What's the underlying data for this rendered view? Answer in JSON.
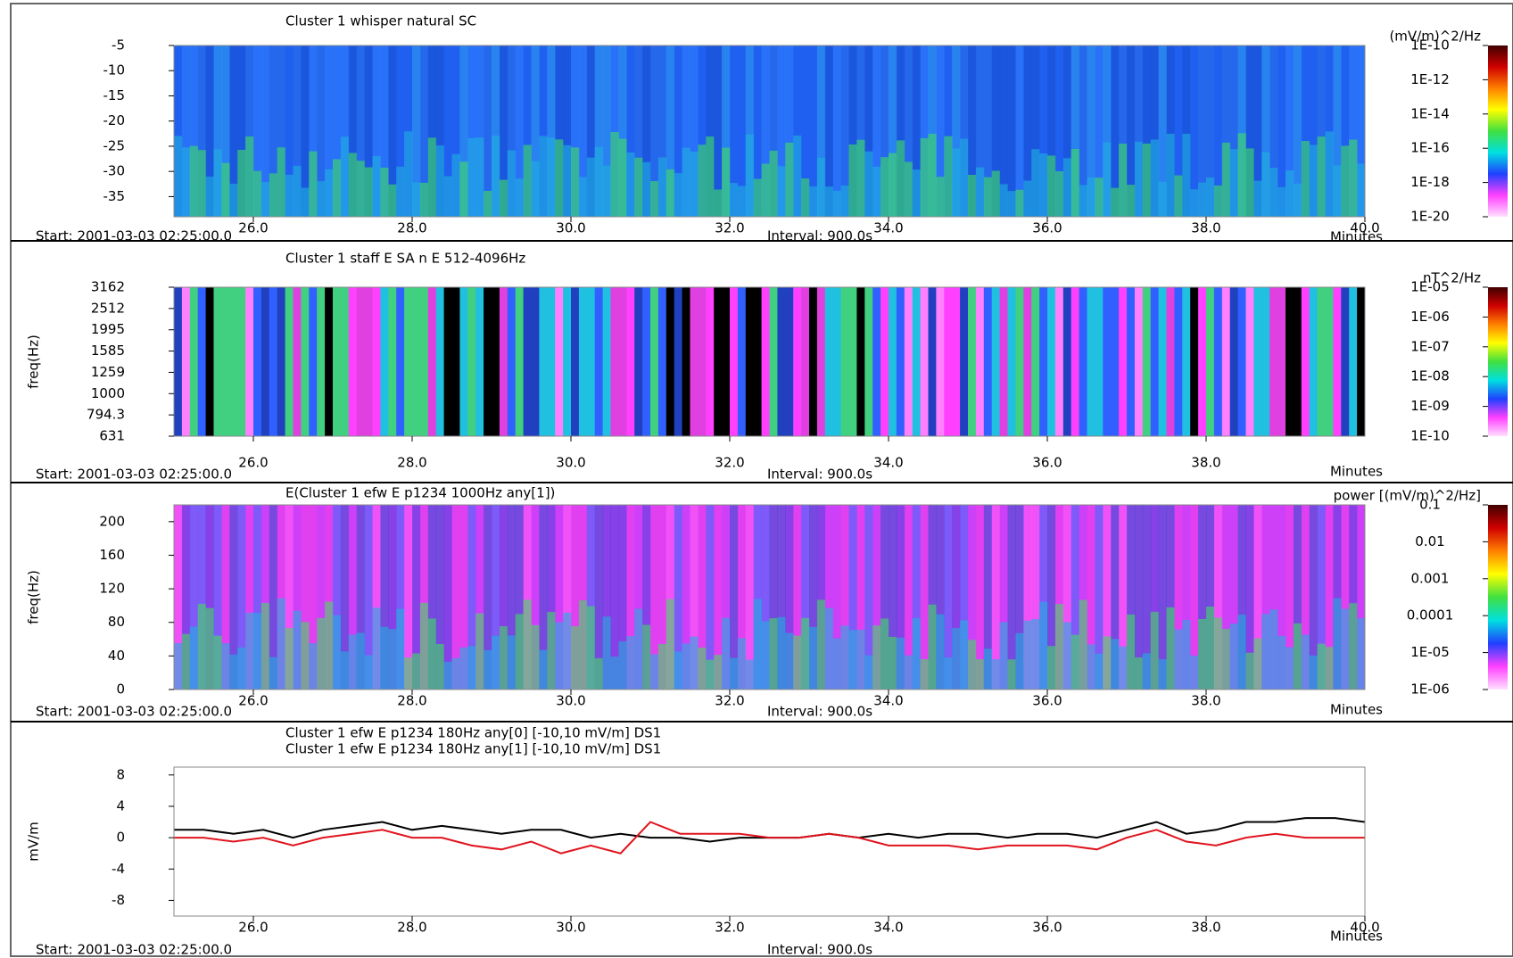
{
  "chart_data": [
    {
      "type": "spectrogram",
      "title": "Cluster 1 whisper natural SC",
      "xlim": [
        25,
        40
      ],
      "xticks": [
        {
          "value": 26,
          "label": "26.0"
        },
        {
          "value": 28,
          "label": "28.0"
        },
        {
          "value": 30,
          "label": "30.0"
        },
        {
          "value": 32,
          "label": "32.0"
        },
        {
          "value": 34,
          "label": "34.0"
        },
        {
          "value": 36,
          "label": "36.0"
        },
        {
          "value": 38,
          "label": "38.0"
        },
        {
          "value": 40,
          "label": "40.0"
        }
      ],
      "xlabel": "Minutes",
      "start_label": "Start: 2001-03-03 02:25:00.0",
      "interval_label": "Interval: 900.0s",
      "ylim": [
        -39,
        -5
      ],
      "yticks": [
        -5,
        -10,
        -15,
        -20,
        -25,
        -30,
        -35
      ],
      "colorbar_label": "(mV/m)^2/Hz",
      "clim": [
        1e-20,
        1e-10
      ],
      "clog": true,
      "cticks": [
        {
          "value": 1e-10,
          "label": "1E-10"
        },
        {
          "value": 1e-12,
          "label": "1E-12"
        },
        {
          "value": 1e-14,
          "label": "1E-14"
        },
        {
          "value": 1e-16,
          "label": "1E-16"
        },
        {
          "value": 1e-18,
          "label": "1E-18"
        },
        {
          "value": 1e-20,
          "label": "1E-20"
        }
      ]
    },
    {
      "type": "spectrogram",
      "title": "Cluster 1 staff E SA n E 512-4096Hz",
      "ylabel": "freq(Hz)",
      "xlim": [
        25,
        40
      ],
      "xticks": [
        {
          "value": 26,
          "label": "26.0"
        },
        {
          "value": 28,
          "label": "28.0"
        },
        {
          "value": 30,
          "label": "30.0"
        },
        {
          "value": 32,
          "label": "32.0"
        },
        {
          "value": 34,
          "label": "34.0"
        },
        {
          "value": 36,
          "label": "36.0"
        },
        {
          "value": 38,
          "label": "38.0"
        }
      ],
      "xlabel": "Minutes",
      "start_label": "Start: 2001-03-03 02:25:00.0",
      "interval_label": "Interval: 900.0s",
      "ylog": true,
      "ylim": [
        631,
        3162
      ],
      "yticks": [
        3162,
        2512,
        1995,
        1585,
        1259,
        1000,
        794.3,
        631
      ],
      "colorbar_label": "nT^2/Hz",
      "clim": [
        1e-10,
        1e-05
      ],
      "clog": true,
      "cticks": [
        {
          "value": 1e-05,
          "label": "1E-05"
        },
        {
          "value": 1e-06,
          "label": "1E-06"
        },
        {
          "value": 1e-07,
          "label": "1E-07"
        },
        {
          "value": 1e-08,
          "label": "1E-08"
        },
        {
          "value": 1e-09,
          "label": "1E-09"
        },
        {
          "value": 1e-10,
          "label": "1E-10"
        }
      ]
    },
    {
      "type": "spectrogram",
      "title": "E(Cluster 1 efw E p1234 1000Hz any[1])",
      "ylabel": "freq(Hz)",
      "xlim": [
        25,
        40
      ],
      "xticks": [
        {
          "value": 26,
          "label": "26.0"
        },
        {
          "value": 28,
          "label": "28.0"
        },
        {
          "value": 30,
          "label": "30.0"
        },
        {
          "value": 32,
          "label": "32.0"
        },
        {
          "value": 34,
          "label": "34.0"
        },
        {
          "value": 36,
          "label": "36.0"
        },
        {
          "value": 38,
          "label": "38.0"
        }
      ],
      "xlabel": "Minutes",
      "start_label": "Start: 2001-03-03 02:25:00.0",
      "interval_label": "Interval: 900.0s",
      "ylim": [
        0,
        220
      ],
      "yticks": [
        200,
        160,
        120,
        80,
        40,
        0
      ],
      "colorbar_label": "power [(mV/m)^2/Hz]",
      "clim": [
        1e-06,
        0.1
      ],
      "clog": true,
      "cticks": [
        0.1,
        0.01,
        0.001,
        0.0001,
        {
          "value": 1e-05,
          "label": "1E-05"
        },
        {
          "value": 1e-06,
          "label": "1E-06"
        }
      ]
    },
    {
      "type": "line",
      "ylabel": "mV/m",
      "xlim": [
        25,
        40
      ],
      "xticks": [
        {
          "value": 26,
          "label": "26.0"
        },
        {
          "value": 28,
          "label": "28.0"
        },
        {
          "value": 30,
          "label": "30.0"
        },
        {
          "value": 32,
          "label": "32.0"
        },
        {
          "value": 34,
          "label": "34.0"
        },
        {
          "value": 36,
          "label": "36.0"
        },
        {
          "value": 38,
          "label": "38.0"
        },
        {
          "value": 40,
          "label": "40.0"
        }
      ],
      "xlabel": "Minutes",
      "start_label": "Start: 2001-03-03 02:25:00.0",
      "interval_label": "Interval: 900.0s",
      "ylim": [
        -10,
        9
      ],
      "yticks": [
        8,
        4,
        0,
        -4,
        -8
      ],
      "x": [
        25,
        25.375,
        25.75,
        26.125,
        26.5,
        26.875,
        27.25,
        27.625,
        28,
        28.375,
        28.75,
        29.125,
        29.5,
        29.875,
        30.25,
        30.625,
        31,
        31.375,
        31.75,
        32.125,
        32.5,
        32.875,
        33.25,
        33.625,
        34,
        34.375,
        34.75,
        35.125,
        35.5,
        35.875,
        36.25,
        36.625,
        37,
        37.375,
        37.75,
        38.125,
        38.5,
        38.875,
        39.25,
        39.625,
        40
      ],
      "series": [
        {
          "name": "Cluster 1 efw E p1234 180Hz any[0] [-10,10 mV/m] DS1",
          "color": "#000000",
          "values": [
            1,
            1,
            0.5,
            1,
            0,
            1,
            1.5,
            2,
            1,
            1.5,
            1,
            0.5,
            1,
            1,
            0,
            0.5,
            0,
            0,
            -0.5,
            0,
            0,
            0,
            0.5,
            0,
            0.5,
            0,
            0.5,
            0.5,
            0,
            0.5,
            0.5,
            0,
            1,
            2,
            0.5,
            1,
            2,
            2,
            2.5,
            2.5,
            2
          ]
        },
        {
          "name": "Cluster 1 efw E p1234 180Hz any[1] [-10,10 mV/m] DS1",
          "color": "#e0141e",
          "values": [
            0,
            0,
            -0.5,
            0,
            -1,
            0,
            0.5,
            1,
            0,
            0,
            -1,
            -1.5,
            -0.5,
            -2,
            -1,
            -2,
            2,
            0.5,
            0.5,
            0.5,
            0,
            0,
            0.5,
            0,
            -1,
            -1,
            -1,
            -1.5,
            -1,
            -1,
            -1,
            -1.5,
            0,
            1,
            -0.5,
            -1,
            0,
            0.5,
            0,
            0,
            0
          ]
        }
      ]
    }
  ]
}
